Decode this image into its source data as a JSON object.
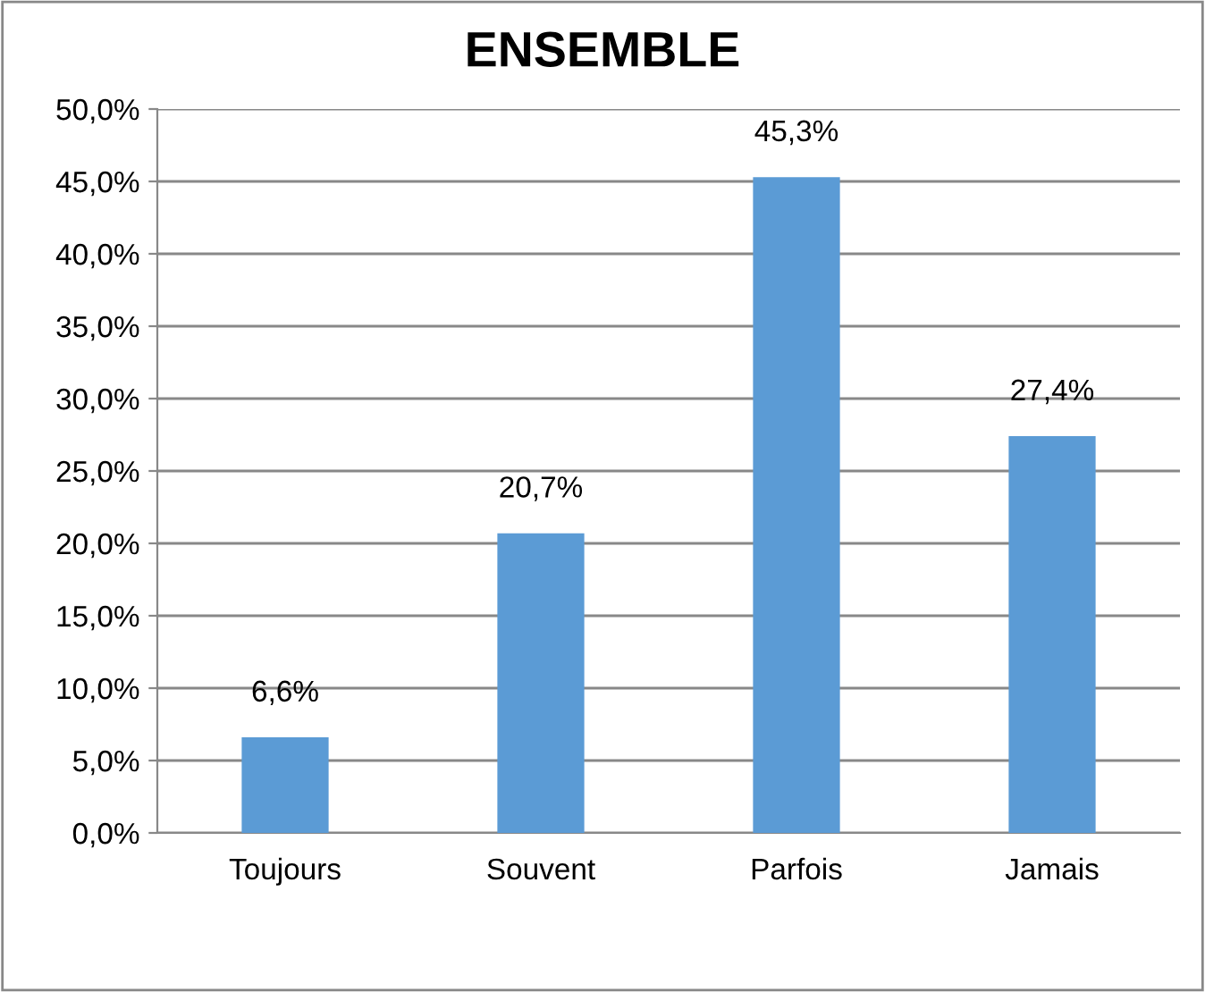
{
  "chart_data": {
    "type": "bar",
    "title": "ENSEMBLE",
    "categories": [
      "Toujours",
      "Souvent",
      "Parfois",
      "Jamais"
    ],
    "values": [
      6.6,
      20.7,
      45.3,
      27.4
    ],
    "value_labels": [
      "6,6%",
      "20,7%",
      "45,3%",
      "27,4%"
    ],
    "color": "#5b9bd5",
    "ylim": [
      0,
      50
    ],
    "yticks": [
      {
        "value": 0,
        "label": "0,0%"
      },
      {
        "value": 5,
        "label": "5,0%"
      },
      {
        "value": 10,
        "label": "10,0%"
      },
      {
        "value": 15,
        "label": "15,0%"
      },
      {
        "value": 20,
        "label": "20,0%"
      },
      {
        "value": 25,
        "label": "25,0%"
      },
      {
        "value": 30,
        "label": "30,0%"
      },
      {
        "value": 35,
        "label": "35,0%"
      },
      {
        "value": 40,
        "label": "40,0%"
      },
      {
        "value": 45,
        "label": "45,0%"
      },
      {
        "value": 50,
        "label": "50,0%"
      }
    ],
    "grid": "y"
  }
}
